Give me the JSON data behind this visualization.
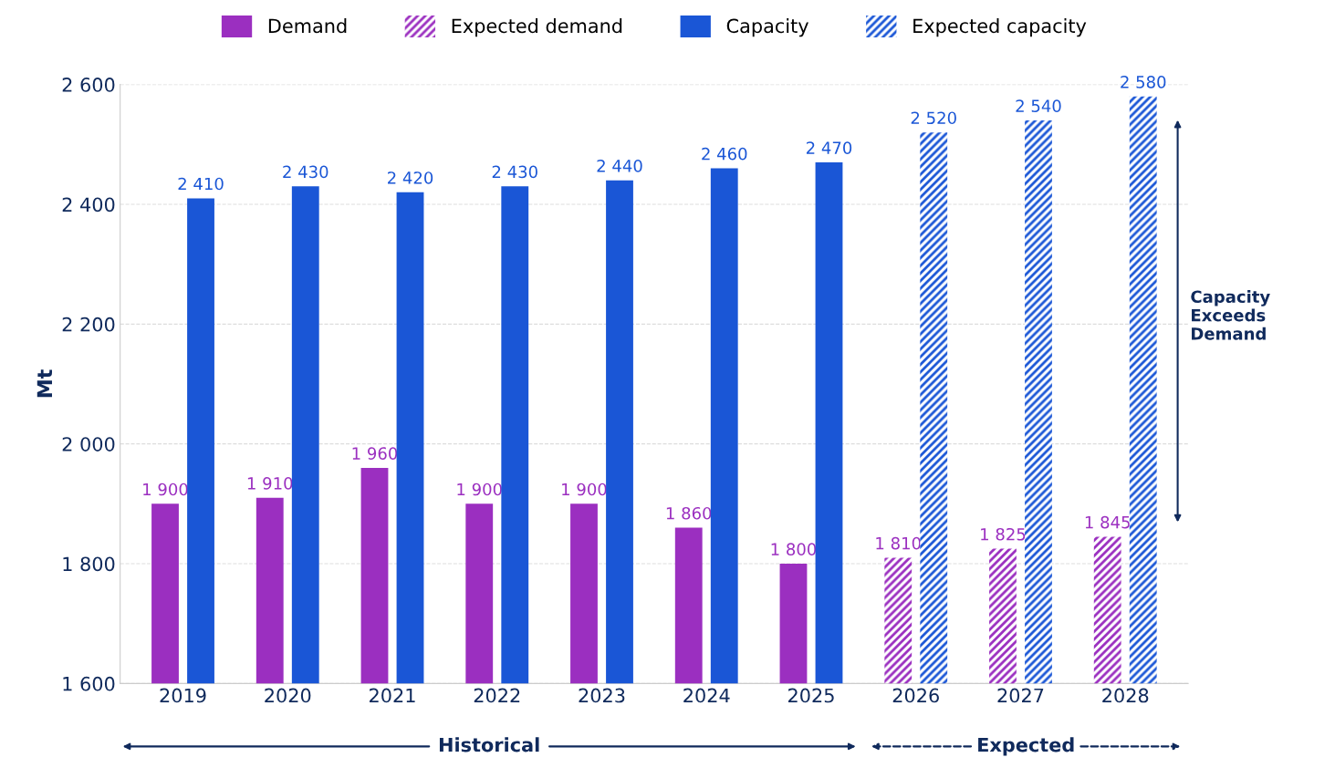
{
  "chart_data": {
    "type": "bar",
    "ylabel": "Mt",
    "categories": [
      "2019",
      "2020",
      "2021",
      "2022",
      "2023",
      "2024",
      "2025",
      "2026",
      "2027",
      "2028"
    ],
    "series": [
      {
        "name": "Demand",
        "color": "#9b2fc0",
        "values": [
          1900,
          1910,
          1960,
          1900,
          1900,
          1860,
          1800,
          null,
          null,
          null
        ],
        "value_labels": [
          "1 900",
          "1 910",
          "1 960",
          "1 900",
          "1 900",
          "1 860",
          "1 800",
          null,
          null,
          null
        ]
      },
      {
        "name": "Expected demand",
        "color": "#9b2fc0",
        "values": [
          null,
          null,
          null,
          null,
          null,
          null,
          null,
          1810,
          1825,
          1845
        ],
        "value_labels": [
          null,
          null,
          null,
          null,
          null,
          null,
          null,
          "1 810",
          "1 825",
          "1 845"
        ]
      },
      {
        "name": "Capacity",
        "color": "#1a56d6",
        "values": [
          2410,
          2430,
          2420,
          2430,
          2440,
          2460,
          2470,
          null,
          null,
          null
        ],
        "value_labels": [
          "2 410",
          "2 430",
          "2 420",
          "2 430",
          "2 440",
          "2 460",
          "2 470",
          null,
          null,
          null
        ]
      },
      {
        "name": "Expected capacity",
        "color": "#1a56d6",
        "values": [
          null,
          null,
          null,
          null,
          null,
          null,
          null,
          2520,
          2540,
          2580
        ],
        "value_labels": [
          null,
          null,
          null,
          null,
          null,
          null,
          null,
          "2 520",
          "2 540",
          "2 580"
        ]
      }
    ],
    "ylim": [
      1600,
      2600
    ],
    "yticks": [
      {
        "value": 1600,
        "label": "1 600"
      },
      {
        "value": 1800,
        "label": "1 800"
      },
      {
        "value": 2000,
        "label": "2 000"
      },
      {
        "value": 2200,
        "label": "2 200"
      },
      {
        "value": 2400,
        "label": "2 400"
      },
      {
        "value": 2600,
        "label": "2 600"
      }
    ],
    "grid": "y",
    "legend": "top",
    "annotations": [
      "Capacity\nExceeds\nDemand",
      "Historical",
      "Expected"
    ]
  }
}
